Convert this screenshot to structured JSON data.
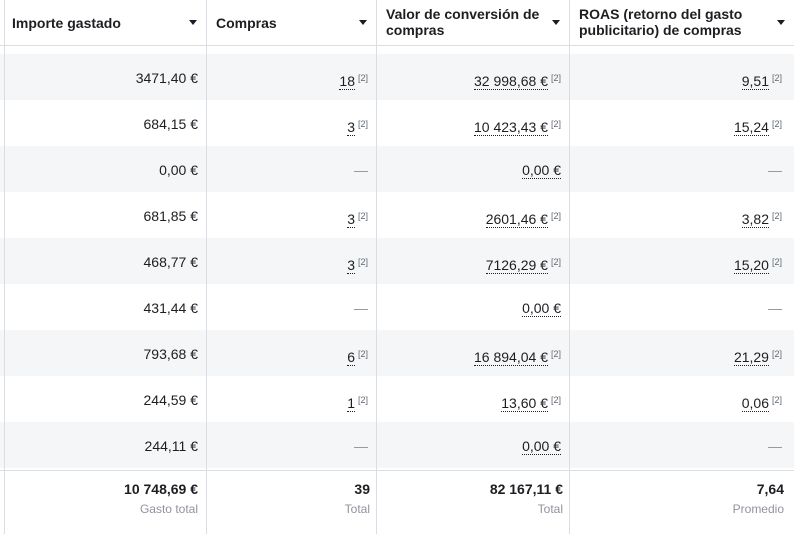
{
  "table": {
    "columns": [
      {
        "label": "Importe gastado"
      },
      {
        "label": "Compras"
      },
      {
        "label": "Valor de conversión de compras"
      },
      {
        "label": "ROAS (retorno del gasto publicitario) de compras"
      }
    ],
    "rows": [
      {
        "spend": "3471,40 €",
        "purchases": "18",
        "purchases_note": "[2]",
        "value": "32 998,68 €",
        "value_note": "[2]",
        "roas": "9,51",
        "roas_note": "[2]"
      },
      {
        "spend": "684,15 €",
        "purchases": "3",
        "purchases_note": "[2]",
        "value": "10 423,43 €",
        "value_note": "[2]",
        "roas": "15,24",
        "roas_note": "[2]"
      },
      {
        "spend": "0,00 €",
        "purchases": "—",
        "purchases_note": "",
        "value": "0,00 €",
        "value_note": "",
        "roas": "—",
        "roas_note": ""
      },
      {
        "spend": "681,85 €",
        "purchases": "3",
        "purchases_note": "[2]",
        "value": "2601,46 €",
        "value_note": "[2]",
        "roas": "3,82",
        "roas_note": "[2]"
      },
      {
        "spend": "468,77 €",
        "purchases": "3",
        "purchases_note": "[2]",
        "value": "7126,29 €",
        "value_note": "[2]",
        "roas": "15,20",
        "roas_note": "[2]"
      },
      {
        "spend": "431,44 €",
        "purchases": "—",
        "purchases_note": "",
        "value": "0,00 €",
        "value_note": "",
        "roas": "—",
        "roas_note": ""
      },
      {
        "spend": "793,68 €",
        "purchases": "6",
        "purchases_note": "[2]",
        "value": "16 894,04 €",
        "value_note": "[2]",
        "roas": "21,29",
        "roas_note": "[2]"
      },
      {
        "spend": "244,59 €",
        "purchases": "1",
        "purchases_note": "[2]",
        "value": "13,60 €",
        "value_note": "[2]",
        "roas": "0,06",
        "roas_note": "[2]"
      },
      {
        "spend": "244,11 €",
        "purchases": "—",
        "purchases_note": "",
        "value": "0,00 €",
        "value_note": "",
        "roas": "—",
        "roas_note": ""
      }
    ],
    "totals": {
      "spend": {
        "value": "10 748,69 €",
        "label": "Gasto total"
      },
      "purchases": {
        "value": "39",
        "label": "Total"
      },
      "value": {
        "value": "82 167,11 €",
        "label": "Total"
      },
      "roas": {
        "value": "7,64",
        "label": "Promedio"
      }
    }
  },
  "icons": {
    "sort": "chevron-down-icon"
  },
  "colors": {
    "row_shade": "#f5f6f7",
    "border": "#dadde1",
    "muted_text": "#90949c"
  }
}
